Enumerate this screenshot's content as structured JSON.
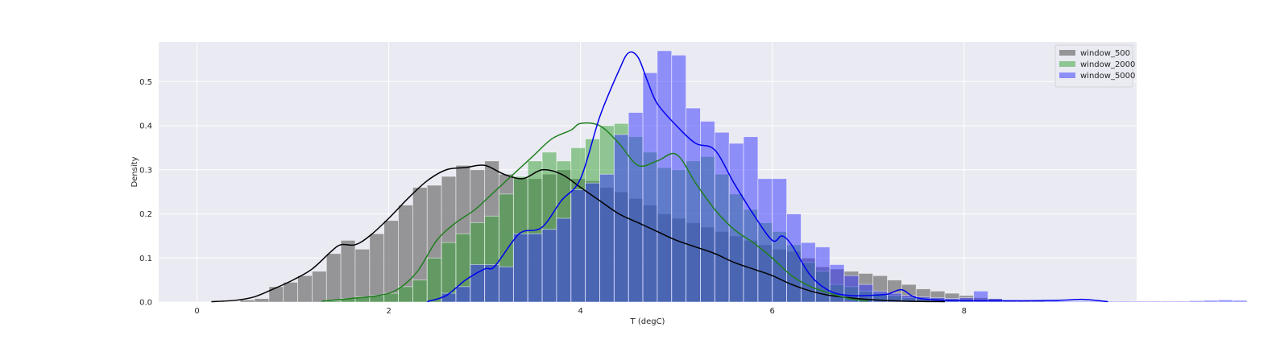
{
  "chart_data": {
    "type": "bar",
    "title": "",
    "xlabel": "T (degC)",
    "ylabel": "Density",
    "xlim": [
      -0.4,
      9.8
    ],
    "ylim": [
      0,
      0.59
    ],
    "xticks": [
      0,
      2,
      4,
      6,
      8
    ],
    "yticks": [
      0.0,
      0.1,
      0.2,
      0.3,
      0.4,
      0.5
    ],
    "grid": true,
    "legend_position": "top-right",
    "bin_width": 0.15,
    "series": [
      {
        "name": "window_500",
        "color": "#808080",
        "line_color": "#000000",
        "bar_opacity": 0.8,
        "bins_start": 0.45,
        "hist": [
          0.005,
          0.008,
          0.035,
          0.045,
          0.06,
          0.07,
          0.11,
          0.14,
          0.12,
          0.155,
          0.185,
          0.22,
          0.26,
          0.265,
          0.285,
          0.31,
          0.3,
          0.32,
          0.29,
          0.28,
          0.28,
          0.29,
          0.3,
          0.28,
          0.275,
          0.26,
          0.25,
          0.235,
          0.22,
          0.2,
          0.19,
          0.18,
          0.17,
          0.16,
          0.15,
          0.14,
          0.13,
          0.12,
          0.115,
          0.1,
          0.08,
          0.075,
          0.07,
          0.065,
          0.06,
          0.05,
          0.04,
          0.03,
          0.025,
          0.02,
          0.015,
          0.01,
          0.008,
          0.005,
          0.004,
          0.003
        ],
        "kde_x": [
          0.15,
          0.4,
          0.6,
          0.8,
          1.0,
          1.2,
          1.4,
          1.5,
          1.65,
          1.8,
          2.0,
          2.2,
          2.4,
          2.6,
          2.8,
          3.0,
          3.2,
          3.4,
          3.6,
          3.8,
          4.0,
          4.2,
          4.4,
          4.6,
          4.8,
          5.0,
          5.2,
          5.4,
          5.6,
          5.8,
          6.0,
          6.2,
          6.4,
          6.6,
          6.8,
          7.0,
          7.4,
          7.8
        ],
        "kde_y": [
          0.001,
          0.004,
          0.012,
          0.03,
          0.05,
          0.075,
          0.115,
          0.13,
          0.13,
          0.15,
          0.19,
          0.235,
          0.275,
          0.3,
          0.305,
          0.31,
          0.29,
          0.28,
          0.3,
          0.29,
          0.26,
          0.23,
          0.2,
          0.18,
          0.16,
          0.14,
          0.125,
          0.11,
          0.09,
          0.075,
          0.06,
          0.04,
          0.025,
          0.015,
          0.01,
          0.006,
          0.002,
          0.001
        ]
      },
      {
        "name": "window_2000",
        "color": "#32a032",
        "line_color": "#1f7f1f",
        "bar_opacity": 0.5,
        "bins_start": 1.35,
        "hist": [
          0.003,
          0.008,
          0.012,
          0.015,
          0.02,
          0.035,
          0.05,
          0.1,
          0.135,
          0.155,
          0.18,
          0.195,
          0.245,
          0.285,
          0.32,
          0.34,
          0.32,
          0.35,
          0.37,
          0.4,
          0.405,
          0.375,
          0.34,
          0.305,
          0.3,
          0.32,
          0.33,
          0.29,
          0.245,
          0.21,
          0.18,
          0.16,
          0.13,
          0.09,
          0.07,
          0.04,
          0.035,
          0.025,
          0.02,
          0.015,
          0.01,
          0.008,
          0.005,
          0.004,
          0.003
        ],
        "kde_x": [
          1.3,
          1.6,
          1.9,
          2.1,
          2.3,
          2.5,
          2.7,
          2.9,
          3.1,
          3.3,
          3.5,
          3.7,
          3.9,
          4.0,
          4.2,
          4.4,
          4.6,
          4.8,
          5.0,
          5.2,
          5.4,
          5.6,
          5.8,
          6.0,
          6.2,
          6.4,
          6.6,
          6.8,
          7.0
        ],
        "kde_y": [
          0.002,
          0.008,
          0.015,
          0.03,
          0.07,
          0.14,
          0.18,
          0.21,
          0.25,
          0.29,
          0.33,
          0.37,
          0.39,
          0.405,
          0.4,
          0.36,
          0.31,
          0.32,
          0.335,
          0.27,
          0.21,
          0.165,
          0.135,
          0.1,
          0.06,
          0.035,
          0.02,
          0.008,
          0.002
        ]
      },
      {
        "name": "window_5000",
        "color": "#3232ff",
        "line_color": "#0000ee",
        "bar_opacity": 0.5,
        "bins_start": 2.55,
        "hist": [
          0.02,
          0.035,
          0.085,
          0.085,
          0.08,
          0.155,
          0.155,
          0.165,
          0.19,
          0.255,
          0.27,
          0.29,
          0.38,
          0.43,
          0.52,
          0.57,
          0.56,
          0.44,
          0.41,
          0.385,
          0.36,
          0.375,
          0.28,
          0.28,
          0.2,
          0.135,
          0.125,
          0.085,
          0.06,
          0.04,
          0.025,
          0.02,
          0.015,
          0.012,
          0.01,
          0.008,
          0.01,
          0.025,
          0.008,
          0.004,
          0.004,
          0.003,
          0.003,
          0.002,
          0.002,
          0.002,
          0.002,
          0.002,
          0.002,
          0.002,
          0.002,
          0.002,
          0.003,
          0.004,
          0.005,
          0.004
        ],
        "kde_x": [
          2.4,
          2.6,
          2.8,
          3.0,
          3.1,
          3.3,
          3.4,
          3.6,
          3.8,
          4.0,
          4.2,
          4.4,
          4.5,
          4.6,
          4.7,
          4.8,
          5.0,
          5.2,
          5.4,
          5.6,
          5.8,
          6.0,
          6.1,
          6.2,
          6.4,
          6.6,
          6.8,
          7.0,
          7.2,
          7.35,
          7.5,
          7.8,
          8.2,
          8.6,
          9.0,
          9.25,
          9.5
        ],
        "kde_y": [
          0.001,
          0.015,
          0.05,
          0.075,
          0.08,
          0.14,
          0.16,
          0.17,
          0.23,
          0.28,
          0.42,
          0.525,
          0.565,
          0.555,
          0.5,
          0.45,
          0.4,
          0.36,
          0.345,
          0.27,
          0.2,
          0.14,
          0.15,
          0.13,
          0.06,
          0.025,
          0.015,
          0.015,
          0.018,
          0.028,
          0.01,
          0.004,
          0.003,
          0.003,
          0.004,
          0.006,
          0.001
        ]
      }
    ]
  }
}
